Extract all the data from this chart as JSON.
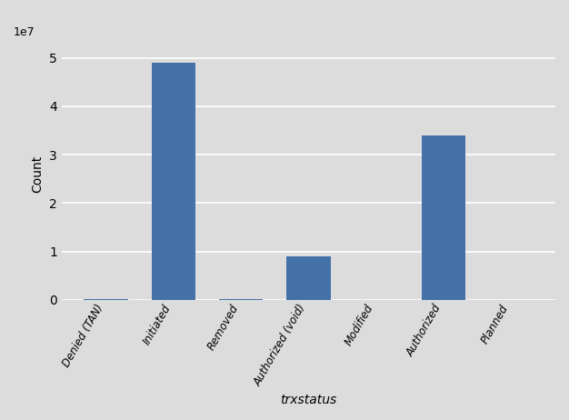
{
  "categories": [
    "Denied (TAN)",
    "Initiated",
    "Removed",
    "Authorized (void)",
    "Modified",
    "Authorized",
    "Planned"
  ],
  "values": [
    120000,
    49000000,
    110000,
    9000000,
    55000,
    34000000,
    45000
  ],
  "bar_color": "#4472a8",
  "xlabel": "trxstatus",
  "ylabel": "Count",
  "background_color": "#dcdcdc",
  "grid_color": "#ffffff",
  "ylim": [
    0,
    52000000
  ],
  "yticks": [
    0,
    10000000,
    20000000,
    30000000,
    40000000,
    50000000
  ],
  "bar_width": 0.65
}
